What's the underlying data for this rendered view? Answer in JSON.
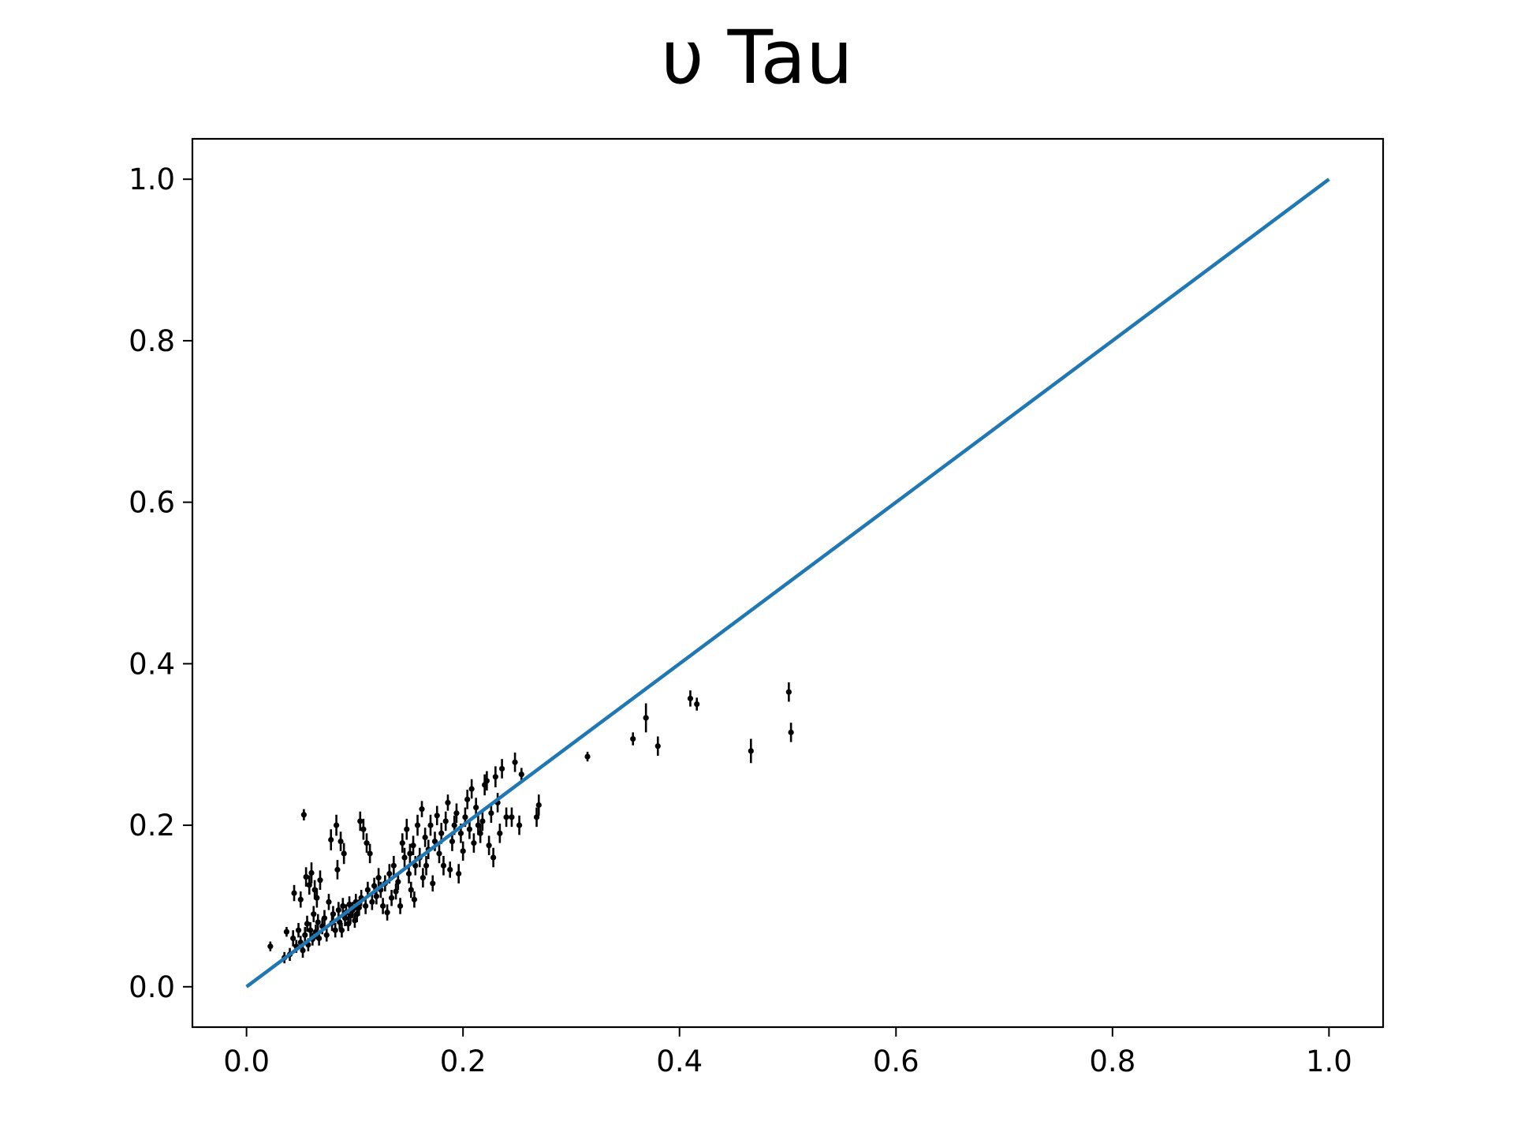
{
  "chart_data": {
    "type": "scatter",
    "title": "υ Tau",
    "xlabel": "",
    "ylabel": "",
    "xlim": [
      -0.05,
      1.05
    ],
    "ylim": [
      -0.05,
      1.05
    ],
    "xticks": [
      "0.0",
      "0.2",
      "0.4",
      "0.6",
      "0.8",
      "1.0"
    ],
    "yticks": [
      "0.0",
      "0.2",
      "0.4",
      "0.6",
      "0.8",
      "1.0"
    ],
    "grid": false,
    "colors": {
      "reference_line": "#1f77b4",
      "points": "#000000"
    },
    "reference_line": {
      "x": [
        0.0,
        1.0
      ],
      "y": [
        0.0,
        1.0
      ]
    },
    "series": [
      {
        "points": [
          [
            0.022,
            0.05,
            0.006
          ],
          [
            0.035,
            0.036,
            0.007
          ],
          [
            0.037,
            0.068,
            0.006
          ],
          [
            0.04,
            0.04,
            0.008
          ],
          [
            0.043,
            0.06,
            0.01
          ],
          [
            0.044,
            0.116,
            0.01
          ],
          [
            0.046,
            0.05,
            0.008
          ],
          [
            0.048,
            0.07,
            0.009
          ],
          [
            0.05,
            0.108,
            0.01
          ],
          [
            0.05,
            0.055,
            0.008
          ],
          [
            0.052,
            0.045,
            0.009
          ],
          [
            0.053,
            0.213,
            0.007
          ],
          [
            0.054,
            0.064,
            0.01
          ],
          [
            0.055,
            0.136,
            0.012
          ],
          [
            0.056,
            0.078,
            0.01
          ],
          [
            0.057,
            0.052,
            0.008
          ],
          [
            0.058,
            0.126,
            0.012
          ],
          [
            0.059,
            0.07,
            0.01
          ],
          [
            0.06,
            0.141,
            0.013
          ],
          [
            0.061,
            0.059,
            0.008
          ],
          [
            0.062,
            0.09,
            0.01
          ],
          [
            0.063,
            0.12,
            0.012
          ],
          [
            0.064,
            0.068,
            0.009
          ],
          [
            0.065,
            0.11,
            0.012
          ],
          [
            0.066,
            0.08,
            0.01
          ],
          [
            0.067,
            0.06,
            0.009
          ],
          [
            0.068,
            0.132,
            0.012
          ],
          [
            0.07,
            0.075,
            0.01
          ],
          [
            0.072,
            0.085,
            0.01
          ],
          [
            0.074,
            0.064,
            0.008
          ],
          [
            0.076,
            0.105,
            0.01
          ],
          [
            0.078,
            0.182,
            0.013
          ],
          [
            0.079,
            0.079,
            0.01
          ],
          [
            0.08,
            0.09,
            0.01
          ],
          [
            0.082,
            0.07,
            0.009
          ],
          [
            0.083,
            0.2,
            0.013
          ],
          [
            0.084,
            0.145,
            0.012
          ],
          [
            0.085,
            0.095,
            0.01
          ],
          [
            0.086,
            0.08,
            0.009
          ],
          [
            0.087,
            0.18,
            0.012
          ],
          [
            0.088,
            0.07,
            0.009
          ],
          [
            0.089,
            0.1,
            0.01
          ],
          [
            0.09,
            0.165,
            0.013
          ],
          [
            0.091,
            0.085,
            0.01
          ],
          [
            0.092,
            0.092,
            0.01
          ],
          [
            0.094,
            0.078,
            0.009
          ],
          [
            0.095,
            0.102,
            0.01
          ],
          [
            0.096,
            0.088,
            0.01
          ],
          [
            0.098,
            0.095,
            0.01
          ],
          [
            0.1,
            0.082,
            0.009
          ],
          [
            0.101,
            0.105,
            0.01
          ],
          [
            0.102,
            0.09,
            0.01
          ],
          [
            0.104,
            0.098,
            0.01
          ],
          [
            0.105,
            0.205,
            0.012
          ],
          [
            0.106,
            0.11,
            0.01
          ],
          [
            0.108,
            0.195,
            0.013
          ],
          [
            0.11,
            0.1,
            0.01
          ],
          [
            0.111,
            0.178,
            0.012
          ],
          [
            0.112,
            0.12,
            0.01
          ],
          [
            0.114,
            0.165,
            0.012
          ],
          [
            0.116,
            0.105,
            0.01
          ],
          [
            0.118,
            0.125,
            0.01
          ],
          [
            0.12,
            0.112,
            0.01
          ],
          [
            0.122,
            0.135,
            0.012
          ],
          [
            0.124,
            0.12,
            0.01
          ],
          [
            0.126,
            0.1,
            0.01
          ],
          [
            0.128,
            0.128,
            0.01
          ],
          [
            0.13,
            0.092,
            0.01
          ],
          [
            0.132,
            0.14,
            0.012
          ],
          [
            0.134,
            0.11,
            0.01
          ],
          [
            0.136,
            0.15,
            0.012
          ],
          [
            0.138,
            0.118,
            0.01
          ],
          [
            0.14,
            0.13,
            0.01
          ],
          [
            0.142,
            0.1,
            0.01
          ],
          [
            0.144,
            0.178,
            0.012
          ],
          [
            0.146,
            0.16,
            0.012
          ],
          [
            0.148,
            0.195,
            0.013
          ],
          [
            0.15,
            0.14,
            0.012
          ],
          [
            0.151,
            0.165,
            0.012
          ],
          [
            0.152,
            0.12,
            0.01
          ],
          [
            0.154,
            0.175,
            0.012
          ],
          [
            0.155,
            0.108,
            0.01
          ],
          [
            0.156,
            0.15,
            0.012
          ],
          [
            0.158,
            0.2,
            0.013
          ],
          [
            0.16,
            0.16,
            0.012
          ],
          [
            0.162,
            0.22,
            0.01
          ],
          [
            0.163,
            0.135,
            0.012
          ],
          [
            0.165,
            0.185,
            0.012
          ],
          [
            0.166,
            0.15,
            0.012
          ],
          [
            0.168,
            0.17,
            0.012
          ],
          [
            0.17,
            0.2,
            0.013
          ],
          [
            0.172,
            0.128,
            0.01
          ],
          [
            0.174,
            0.18,
            0.012
          ],
          [
            0.176,
            0.212,
            0.012
          ],
          [
            0.178,
            0.165,
            0.012
          ],
          [
            0.18,
            0.19,
            0.013
          ],
          [
            0.182,
            0.15,
            0.012
          ],
          [
            0.184,
            0.205,
            0.012
          ],
          [
            0.186,
            0.228,
            0.01
          ],
          [
            0.188,
            0.145,
            0.01
          ],
          [
            0.19,
            0.18,
            0.012
          ],
          [
            0.192,
            0.2,
            0.012
          ],
          [
            0.194,
            0.215,
            0.012
          ],
          [
            0.196,
            0.14,
            0.012
          ],
          [
            0.198,
            0.19,
            0.012
          ],
          [
            0.2,
            0.168,
            0.012
          ],
          [
            0.202,
            0.21,
            0.012
          ],
          [
            0.204,
            0.232,
            0.012
          ],
          [
            0.206,
            0.195,
            0.012
          ],
          [
            0.208,
            0.245,
            0.012
          ],
          [
            0.21,
            0.178,
            0.012
          ],
          [
            0.212,
            0.222,
            0.012
          ],
          [
            0.214,
            0.2,
            0.012
          ],
          [
            0.216,
            0.19,
            0.012
          ],
          [
            0.218,
            0.205,
            0.012
          ],
          [
            0.22,
            0.25,
            0.013
          ],
          [
            0.222,
            0.255,
            0.012
          ],
          [
            0.224,
            0.175,
            0.012
          ],
          [
            0.226,
            0.215,
            0.012
          ],
          [
            0.228,
            0.16,
            0.012
          ],
          [
            0.23,
            0.26,
            0.013
          ],
          [
            0.232,
            0.228,
            0.012
          ],
          [
            0.234,
            0.19,
            0.012
          ],
          [
            0.236,
            0.27,
            0.012
          ],
          [
            0.24,
            0.21,
            0.012
          ],
          [
            0.245,
            0.21,
            0.012
          ],
          [
            0.248,
            0.278,
            0.012
          ],
          [
            0.252,
            0.2,
            0.012
          ],
          [
            0.254,
            0.263,
            0.008
          ],
          [
            0.268,
            0.21,
            0.012
          ],
          [
            0.27,
            0.225,
            0.013
          ],
          [
            0.315,
            0.285,
            0.006
          ],
          [
            0.357,
            0.307,
            0.008
          ],
          [
            0.369,
            0.333,
            0.018
          ],
          [
            0.38,
            0.298,
            0.012
          ],
          [
            0.41,
            0.357,
            0.01
          ],
          [
            0.416,
            0.35,
            0.008
          ],
          [
            0.466,
            0.292,
            0.015
          ],
          [
            0.501,
            0.365,
            0.012
          ],
          [
            0.503,
            0.315,
            0.012
          ]
        ]
      }
    ]
  }
}
